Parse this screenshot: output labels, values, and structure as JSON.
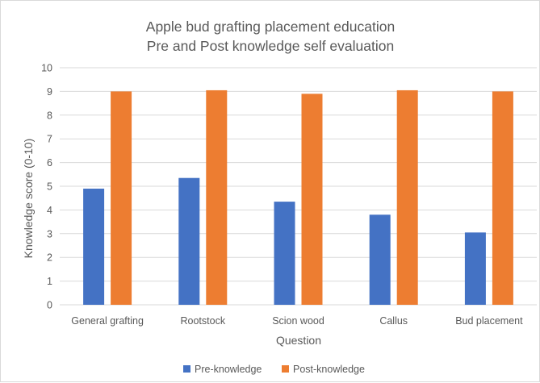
{
  "chart_data": {
    "type": "bar",
    "title_lines": [
      "Apple bud grafting placement education",
      "Pre and Post knowledge self evaluation"
    ],
    "xlabel": "Question",
    "ylabel": "Knowledge score (0-10)",
    "ylim": [
      0,
      10
    ],
    "yticks": [
      "0",
      "1",
      "2",
      "3",
      "4",
      "5",
      "6",
      "7",
      "8",
      "9",
      "10"
    ],
    "categories": [
      "General grafting",
      "Rootstock",
      "Scion wood",
      "Callus",
      "Bud placement"
    ],
    "series": [
      {
        "name": "Pre-knowledge",
        "color": "#4472c4",
        "values": [
          4.9,
          5.35,
          4.35,
          3.8,
          3.05
        ]
      },
      {
        "name": "Post-knowledge",
        "color": "#ed7d31",
        "values": [
          9.0,
          9.05,
          8.9,
          9.05,
          9.0
        ]
      }
    ],
    "grid": true,
    "legend_position": "bottom",
    "gridline_color": "#d9d9d9"
  }
}
